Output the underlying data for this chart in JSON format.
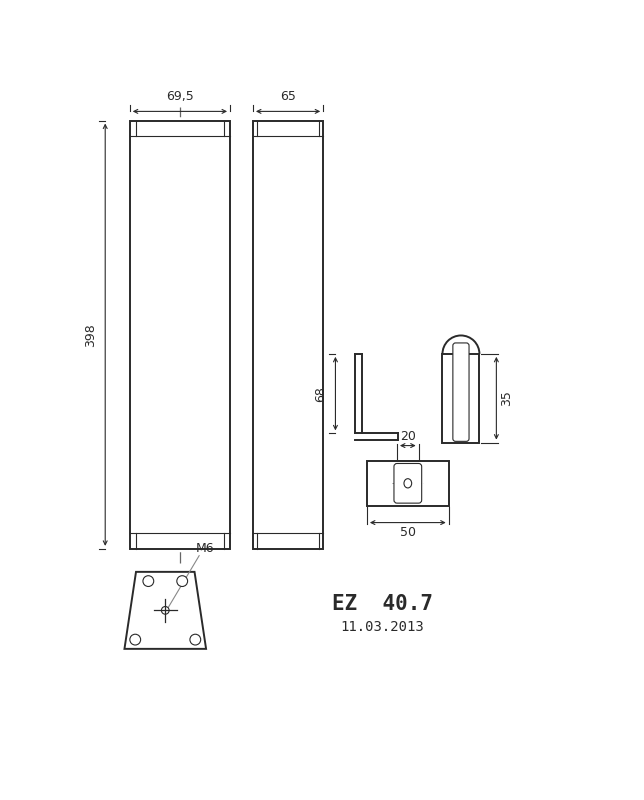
{
  "bg_color": "#ffffff",
  "line_color": "#2a2a2a",
  "dim_69_5": "69,5",
  "dim_65": "65",
  "dim_398": "398",
  "dim_68": "68",
  "dim_35": "35",
  "dim_20": "20",
  "dim_50": "50",
  "label_m6": "M6",
  "title": "EZ  40.7",
  "date": "11.03.2013",
  "lw_main": 1.4,
  "lw_thin": 0.8,
  "lw_dim": 0.8
}
